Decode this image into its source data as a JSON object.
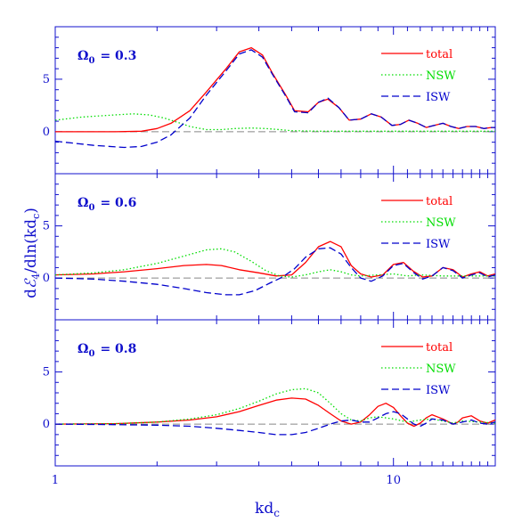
{
  "chart_data": {
    "type": "line",
    "xscale": "log",
    "xlim": [
      1,
      20
    ],
    "ylim": [
      -4,
      10
    ],
    "xlabel": "kd",
    "xlabel_sub": "c",
    "ylabel": "dℰ₄/dln(kdc)",
    "ylabel_parts": {
      "d1": "d",
      "E": "ℰ",
      "sub4": "4",
      "mid": "/dln(kd",
      "subc": "c",
      "end": ")"
    },
    "x_tick_labels": [
      {
        "x": 1,
        "label": "1"
      },
      {
        "x": 10,
        "label": "10"
      }
    ],
    "y_tick_labels": [
      {
        "y": 0,
        "label": "0"
      },
      {
        "y": 5,
        "label": "5"
      }
    ],
    "legend_location": "top-right",
    "colors": {
      "total": "#ff0000",
      "NSW": "#00dd00",
      "ISW": "#0000cc",
      "axis": "#1010cc",
      "zero": "#888888"
    },
    "panels": [
      {
        "label_prefix": "Ω",
        "label_sub": "0",
        "label_value": "= 0.3",
        "series": [
          {
            "name": "total",
            "style": "solid",
            "x": [
              1,
              1.5,
              1.8,
              2.0,
              2.2,
              2.5,
              2.8,
              3.2,
              3.5,
              3.8,
              4.1,
              4.4,
              4.8,
              5.1,
              5.6,
              6.0,
              6.4,
              6.9,
              7.4,
              8.0,
              8.6,
              9.2,
              9.9,
              10.5,
              11.1,
              11.8,
              12.5,
              13.2,
              14,
              14.8,
              15.6,
              16.5,
              17.5,
              18.5,
              19.5,
              20
            ],
            "y": [
              0,
              0,
              0.05,
              0.3,
              0.8,
              2.0,
              3.8,
              6.0,
              7.6,
              8.0,
              7.3,
              5.5,
              3.5,
              2.0,
              1.9,
              2.8,
              3.1,
              2.3,
              1.1,
              1.2,
              1.7,
              1.4,
              0.6,
              0.7,
              1.1,
              0.8,
              0.4,
              0.6,
              0.8,
              0.5,
              0.3,
              0.5,
              0.5,
              0.3,
              0.4,
              0.4
            ]
          },
          {
            "name": "NSW",
            "style": "dotted",
            "x": [
              1,
              1.2,
              1.5,
              1.7,
              1.9,
              2.1,
              2.3,
              2.5,
              2.8,
              3.1,
              3.4,
              3.8,
              4.2,
              4.6,
              5,
              6,
              8,
              10,
              14,
              20
            ],
            "y": [
              1.1,
              1.4,
              1.6,
              1.7,
              1.6,
              1.3,
              0.9,
              0.5,
              0.2,
              0.2,
              0.3,
              0.35,
              0.3,
              0.2,
              0.1,
              0.05,
              0.05,
              0.05,
              0.05,
              0.05
            ]
          },
          {
            "name": "ISW",
            "style": "dashed",
            "x": [
              1,
              1.3,
              1.6,
              1.8,
              2.0,
              2.2,
              2.5,
              2.8,
              3.2,
              3.5,
              3.8,
              4.1,
              4.4,
              4.8,
              5.1,
              5.6,
              6.0,
              6.4,
              6.9,
              7.4,
              8.0,
              8.6,
              9.2,
              9.9,
              10.5,
              11.1,
              11.8,
              12.5,
              13.2,
              14,
              14.8,
              15.6,
              16.5,
              17.5,
              18.5,
              19.5,
              20
            ],
            "y": [
              -0.9,
              -1.3,
              -1.5,
              -1.4,
              -1.0,
              -0.3,
              1.3,
              3.5,
              5.8,
              7.4,
              7.8,
              7.1,
              5.4,
              3.4,
              1.9,
              1.8,
              2.8,
              3.2,
              2.3,
              1.1,
              1.2,
              1.7,
              1.4,
              0.6,
              0.7,
              1.1,
              0.8,
              0.4,
              0.6,
              0.8,
              0.5,
              0.3,
              0.5,
              0.5,
              0.3,
              0.4,
              0.4
            ]
          }
        ]
      },
      {
        "label_prefix": "Ω",
        "label_sub": "0",
        "label_value": "= 0.6",
        "series": [
          {
            "name": "total",
            "style": "solid",
            "x": [
              1,
              1.3,
              1.6,
              2.0,
              2.4,
              2.8,
              3.1,
              3.5,
              4.0,
              4.5,
              5.0,
              5.5,
              6.0,
              6.5,
              7.0,
              7.5,
              8.0,
              8.6,
              9.3,
              10.0,
              10.7,
              11.4,
              12.2,
              13.0,
              14.0,
              15.0,
              16.0,
              17.0,
              18.0,
              19.0,
              20
            ],
            "y": [
              0.3,
              0.4,
              0.6,
              0.9,
              1.2,
              1.3,
              1.2,
              0.8,
              0.5,
              0.2,
              0.3,
              1.5,
              3.0,
              3.5,
              3.0,
              1.2,
              0.4,
              0.1,
              0.3,
              1.3,
              1.5,
              0.7,
              0.1,
              0.2,
              1.0,
              0.8,
              0.1,
              0.4,
              0.6,
              0.2,
              0.4
            ]
          },
          {
            "name": "NSW",
            "style": "dotted",
            "x": [
              1,
              1.3,
              1.6,
              2.0,
              2.4,
              2.8,
              3.1,
              3.4,
              3.8,
              4.2,
              4.6,
              5.0,
              5.5,
              6.0,
              6.5,
              7.0,
              7.5,
              8.0,
              9.0,
              10,
              11,
              12,
              14,
              16,
              18,
              20
            ],
            "y": [
              0.3,
              0.5,
              0.8,
              1.4,
              2.1,
              2.7,
              2.8,
              2.5,
              1.6,
              0.7,
              0.2,
              0.1,
              0.3,
              0.6,
              0.8,
              0.6,
              0.3,
              0.2,
              0.3,
              0.4,
              0.2,
              0.3,
              0.2,
              0.2,
              0.2,
              0.2
            ]
          },
          {
            "name": "ISW",
            "style": "dashed",
            "x": [
              1,
              1.3,
              1.6,
              2.0,
              2.4,
              2.8,
              3.2,
              3.5,
              3.9,
              4.3,
              4.7,
              5.1,
              5.5,
              6.0,
              6.5,
              7.0,
              7.5,
              8.0,
              8.6,
              9.3,
              10.0,
              10.7,
              11.4,
              12.2,
              13.0,
              14.0,
              15.0,
              16.0,
              17.0,
              18.0,
              19.0,
              20
            ],
            "y": [
              0,
              -0.1,
              -0.3,
              -0.6,
              -1.0,
              -1.4,
              -1.6,
              -1.6,
              -1.2,
              -0.5,
              0.1,
              0.9,
              2.0,
              2.8,
              2.9,
              2.3,
              1.0,
              0.0,
              -0.3,
              0.2,
              1.2,
              1.4,
              0.6,
              -0.1,
              0.2,
              1.0,
              0.7,
              0.0,
              0.3,
              0.5,
              0.1,
              0.3
            ]
          }
        ]
      },
      {
        "label_prefix": "Ω",
        "label_sub": "0",
        "label_value": "= 0.8",
        "series": [
          {
            "name": "total",
            "style": "solid",
            "x": [
              1,
              1.5,
              2.0,
              2.5,
              3.0,
              3.5,
              4.0,
              4.5,
              5.0,
              5.5,
              6.0,
              6.5,
              7.0,
              7.5,
              8.0,
              8.5,
              9.0,
              9.5,
              10.0,
              10.5,
              11.0,
              11.5,
              12.0,
              12.5,
              13.0,
              14.0,
              15.0,
              15.5,
              16.0,
              17.0,
              18.0,
              19.0,
              20
            ],
            "y": [
              0,
              0.05,
              0.2,
              0.4,
              0.7,
              1.2,
              1.8,
              2.3,
              2.5,
              2.4,
              1.8,
              1.0,
              0.3,
              0.0,
              0.2,
              0.9,
              1.7,
              2.0,
              1.6,
              0.8,
              0.1,
              -0.2,
              0.1,
              0.6,
              0.9,
              0.5,
              0.0,
              0.2,
              0.6,
              0.8,
              0.3,
              0.1,
              0.4
            ]
          },
          {
            "name": "NSW",
            "style": "dotted",
            "x": [
              1,
              1.5,
              2.0,
              2.5,
              3.0,
              3.5,
              4.0,
              4.5,
              5.0,
              5.5,
              6.0,
              6.5,
              7.0,
              7.5,
              8.0,
              8.5,
              9.0,
              10,
              11,
              12,
              13,
              14,
              15,
              16,
              18,
              20
            ],
            "y": [
              0,
              0.05,
              0.2,
              0.5,
              0.9,
              1.5,
              2.2,
              2.9,
              3.3,
              3.4,
              3.0,
              2.0,
              1.0,
              0.4,
              0.3,
              0.6,
              0.7,
              0.5,
              0.2,
              0.4,
              0.5,
              0.3,
              0.1,
              0.3,
              0.2,
              0.1
            ]
          },
          {
            "name": "ISW",
            "style": "dashed",
            "x": [
              1,
              1.5,
              2.0,
              2.5,
              3.0,
              3.5,
              4.0,
              4.5,
              5.0,
              5.5,
              6.0,
              6.5,
              7.0,
              7.5,
              8.0,
              8.5,
              9.0,
              9.5,
              10.0,
              10.5,
              11.0,
              11.5,
              12.0,
              12.5,
              13.0,
              14.0,
              15.0,
              16.0,
              17.0,
              18.0,
              19.0,
              20
            ],
            "y": [
              0,
              -0.05,
              -0.1,
              -0.2,
              -0.4,
              -0.6,
              -0.8,
              -1.0,
              -1.0,
              -0.8,
              -0.4,
              0.0,
              0.3,
              0.4,
              0.2,
              0.2,
              0.6,
              1.0,
              1.2,
              1.0,
              0.5,
              0.0,
              -0.2,
              0.1,
              0.5,
              0.4,
              0.0,
              0.2,
              0.4,
              0.1,
              0.0,
              0.2
            ]
          }
        ]
      }
    ]
  }
}
